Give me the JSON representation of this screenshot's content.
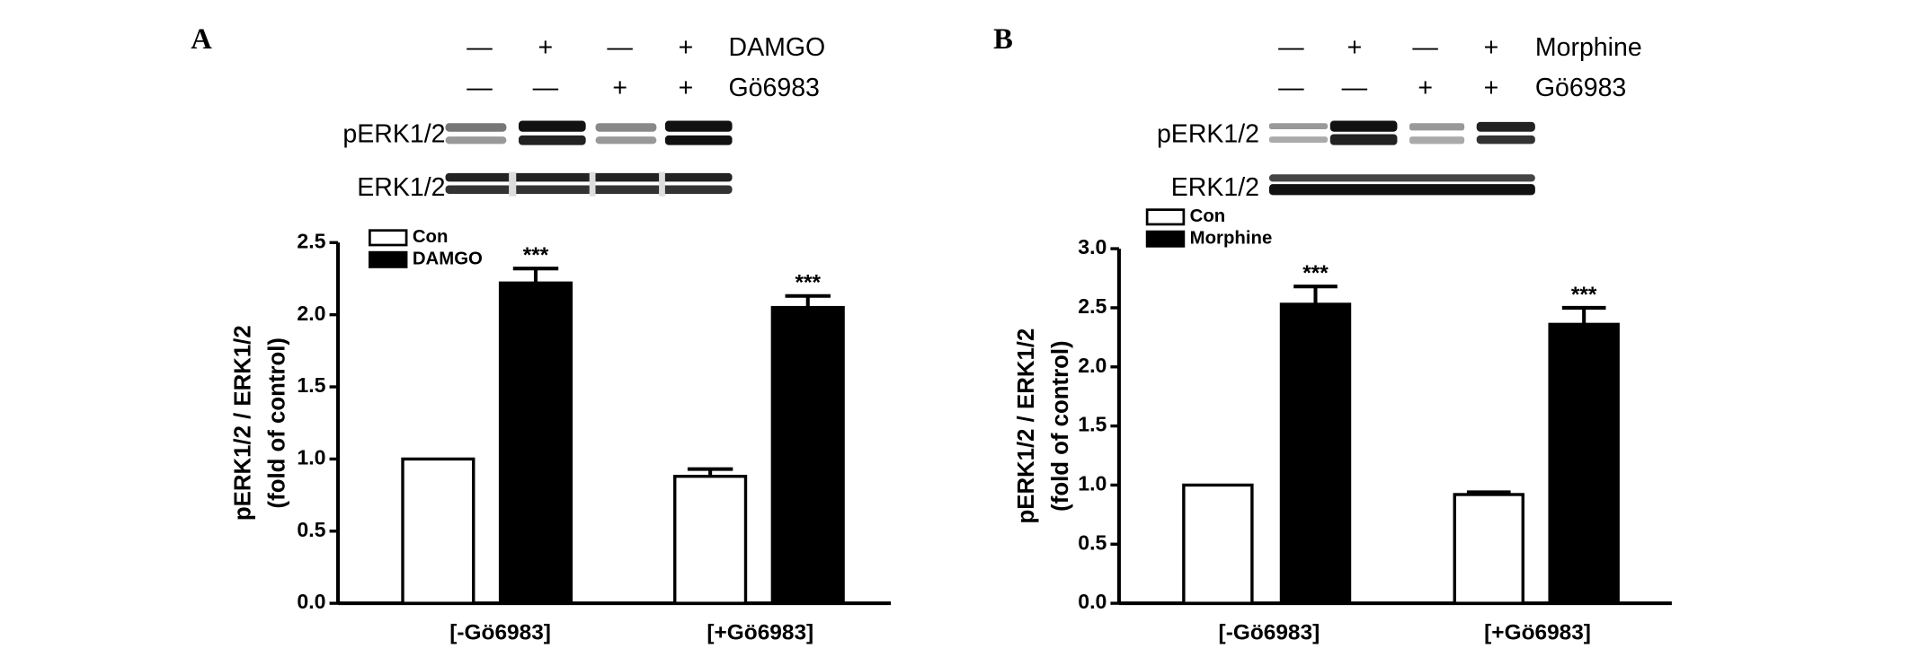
{
  "chart_data": [
    {
      "type": "bar",
      "panel_label": "A",
      "blot": {
        "rows": [
          {
            "label": "DAMGO",
            "signs": [
              "—",
              "+",
              "—",
              "+"
            ]
          },
          {
            "label": "Gö6983",
            "signs": [
              "—",
              "—",
              "+",
              "+"
            ]
          }
        ],
        "bands": [
          "pERK1/2",
          "ERK1/2"
        ]
      },
      "y_label": [
        "pERK1/2 / ERK1/2",
        "(fold of  control)"
      ],
      "categories": [
        "[-Gö6983]",
        "[+Gö6983]"
      ],
      "series": [
        {
          "name": "Con",
          "color": "#ffffff",
          "values": [
            1.0,
            0.88
          ],
          "errors": [
            0,
            0.05
          ]
        },
        {
          "name": "DAMGO",
          "color": "#000000",
          "values": [
            2.22,
            2.05
          ],
          "errors": [
            0.1,
            0.08
          ]
        }
      ],
      "annotations": [
        "***",
        "***"
      ],
      "ylim": [
        0,
        2.5
      ],
      "yticks": [
        {
          "value": 0,
          "label": "0.0"
        },
        {
          "value": 0.5,
          "label": "0.5"
        },
        {
          "value": 1,
          "label": "1.0"
        },
        {
          "value": 1.5,
          "label": "1.5"
        },
        {
          "value": 2,
          "label": "2.0"
        },
        {
          "value": 2.5,
          "label": "2.5"
        }
      ]
    },
    {
      "type": "bar",
      "panel_label": "B",
      "blot": {
        "rows": [
          {
            "label": "Morphine",
            "signs": [
              "—",
              "+",
              "—",
              "+"
            ]
          },
          {
            "label": "Gö6983",
            "signs": [
              "—",
              "—",
              "+",
              "+"
            ]
          }
        ],
        "bands": [
          "pERK1/2",
          "ERK1/2"
        ]
      },
      "y_label": [
        "pERK1/2 / ERK1/2",
        "(fold of control)"
      ],
      "categories": [
        "[-Gö6983]",
        "[+Gö6983]"
      ],
      "series": [
        {
          "name": "Con",
          "color": "#ffffff",
          "values": [
            1.0,
            0.92
          ],
          "errors": [
            0,
            0.02
          ]
        },
        {
          "name": "Morphine",
          "color": "#000000",
          "values": [
            2.53,
            2.36
          ],
          "errors": [
            0.15,
            0.14
          ]
        }
      ],
      "annotations": [
        "***",
        "***"
      ],
      "ylim": [
        0,
        3
      ],
      "yticks": [
        {
          "value": 0,
          "label": "0.0"
        },
        {
          "value": 0.5,
          "label": "0.5"
        },
        {
          "value": 1,
          "label": "1.0"
        },
        {
          "value": 1.5,
          "label": "1.5"
        },
        {
          "value": 2,
          "label": "2.0"
        },
        {
          "value": 2.5,
          "label": "2.5"
        },
        {
          "value": 3,
          "label": "3.0"
        }
      ]
    }
  ]
}
